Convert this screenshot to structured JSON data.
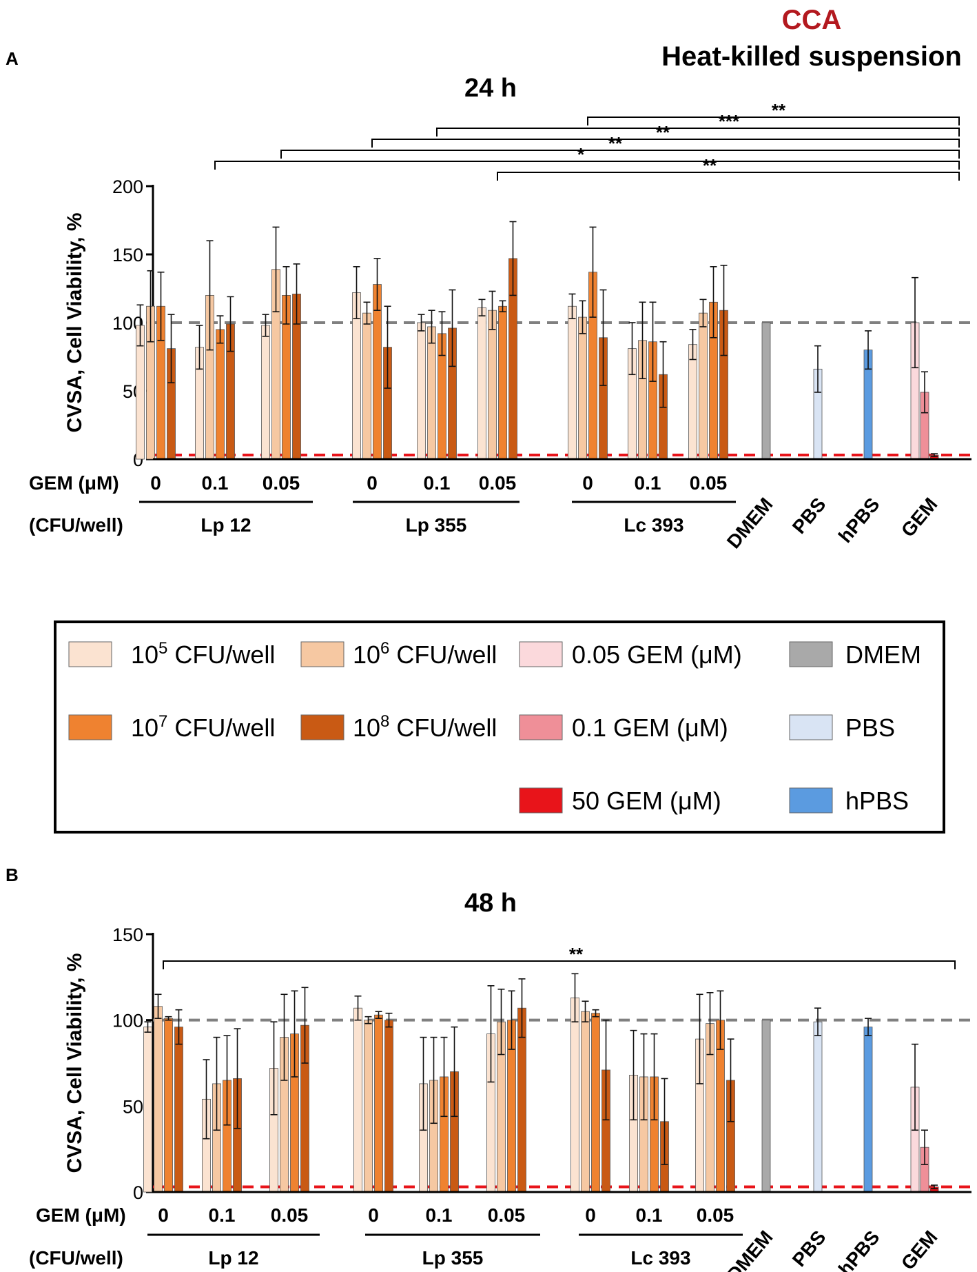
{
  "figure": {
    "cca_label": "CCA",
    "suspension_label": "Heat-killed suspension",
    "colors": {
      "cfu_1e5": "#fbe3d1",
      "cfu_1e6": "#f6c8a2",
      "cfu_1e7": "#ef8230",
      "cfu_1e8": "#c95a14",
      "gem_005": "#fbd9dc",
      "gem_01": "#ef8f98",
      "gem_50": "#e8141a",
      "dmem": "#a9a9a9",
      "pbs": "#d9e4f4",
      "hpbs": "#5b9be0",
      "title_red": "#b3191f"
    }
  },
  "chart_data": [
    {
      "panel": "A",
      "type": "bar",
      "title": "24 h",
      "ylabel": "CVSA, Cell Viability, %",
      "ylim": [
        0,
        200
      ],
      "yticks": [
        0,
        50,
        100,
        150,
        200
      ],
      "reference_lines": [
        {
          "y": 100,
          "color": "#808080",
          "style": "dashed"
        },
        {
          "y": 3,
          "color": "#e8141a",
          "style": "dashed"
        }
      ],
      "gem_axis_label": "GEM (μM)",
      "cfu_axis_label": "(CFU/well)",
      "gem_tick_labels": [
        "0",
        "0.1",
        "0.05",
        "0",
        "0.1",
        "0.05",
        "0",
        "0.1",
        "0.05"
      ],
      "strain_labels": [
        "Lp 12",
        "Lp 355",
        "Lc 393"
      ],
      "control_labels": [
        "DMEM",
        "PBS",
        "hPBS",
        "GEM"
      ],
      "series_names": [
        "10^5 CFU/well",
        "10^6 CFU/well",
        "10^7 CFU/well",
        "10^8 CFU/well"
      ],
      "groups": [
        {
          "strain": "Lp 12",
          "gem": "0",
          "values": [
            98,
            112,
            112,
            81
          ],
          "errors": [
            15,
            26,
            25,
            25
          ]
        },
        {
          "strain": "Lp 12",
          "gem": "0.1",
          "values": [
            82,
            120,
            95,
            99
          ],
          "errors": [
            16,
            40,
            10,
            20
          ]
        },
        {
          "strain": "Lp 12",
          "gem": "0.05",
          "values": [
            98,
            139,
            120,
            121
          ],
          "errors": [
            8,
            31,
            21,
            22
          ]
        },
        {
          "strain": "Lp 355",
          "gem": "0",
          "values": [
            122,
            107,
            128,
            82
          ],
          "errors": [
            19,
            8,
            19,
            30
          ]
        },
        {
          "strain": "Lp 355",
          "gem": "0.1",
          "values": [
            100,
            97,
            92,
            96
          ],
          "errors": [
            6,
            12,
            16,
            28
          ]
        },
        {
          "strain": "Lp 355",
          "gem": "0.05",
          "values": [
            111,
            109,
            112,
            147
          ],
          "errors": [
            6,
            14,
            4,
            27
          ]
        },
        {
          "strain": "Lc 393",
          "gem": "0",
          "values": [
            112,
            104,
            137,
            89
          ],
          "errors": [
            9,
            12,
            33,
            35
          ]
        },
        {
          "strain": "Lc 393",
          "gem": "0.1",
          "values": [
            81,
            87,
            86,
            62
          ],
          "errors": [
            19,
            28,
            29,
            24
          ]
        },
        {
          "strain": "Lc 393",
          "gem": "0.05",
          "values": [
            84,
            107,
            115,
            109
          ],
          "errors": [
            11,
            10,
            26,
            33
          ]
        }
      ],
      "controls": [
        {
          "name": "DMEM",
          "value": 100,
          "error": 0
        },
        {
          "name": "PBS",
          "value": 66,
          "error": 17
        },
        {
          "name": "hPBS",
          "value": 80,
          "error": 14
        },
        {
          "name": "GEM 0.05",
          "value": 100,
          "error": 33
        },
        {
          "name": "GEM 0.1",
          "value": 49,
          "error": 15
        },
        {
          "name": "GEM 50",
          "value": 3,
          "error": 1
        }
      ],
      "significance": [
        {
          "from_group": 6,
          "label": "**"
        },
        {
          "from_group": 4,
          "label": "***"
        },
        {
          "from_group": 3,
          "label": "**"
        },
        {
          "from_group": 2,
          "label": "**"
        },
        {
          "from_group": 1,
          "label": "*"
        },
        {
          "from_group": 5,
          "label": "**"
        }
      ]
    },
    {
      "panel": "B",
      "type": "bar",
      "title": "48 h",
      "ylabel": "CVSA, Cell Viability, %",
      "ylim": [
        0,
        150
      ],
      "yticks": [
        0,
        50,
        100,
        150
      ],
      "reference_lines": [
        {
          "y": 100,
          "color": "#808080",
          "style": "dashed"
        },
        {
          "y": 3,
          "color": "#e8141a",
          "style": "dashed"
        }
      ],
      "gem_axis_label": "GEM (μM)",
      "cfu_axis_label": "(CFU/well)",
      "gem_tick_labels": [
        "0",
        "0.1",
        "0.05",
        "0",
        "0.1",
        "0.05",
        "0",
        "0.1",
        "0.05"
      ],
      "strain_labels": [
        "Lp 12",
        "Lp 355",
        "Lc 393"
      ],
      "control_labels": [
        "DMEM",
        "PBS",
        "hPBS",
        "GEM"
      ],
      "series_names": [
        "10^5 CFU/well",
        "10^6 CFU/well",
        "10^7 CFU/well",
        "10^8 CFU/well"
      ],
      "groups": [
        {
          "strain": "Lp 12",
          "gem": "0",
          "values": [
            96,
            108,
            101,
            96
          ],
          "errors": [
            3,
            7,
            1,
            10
          ]
        },
        {
          "strain": "Lp 12",
          "gem": "0.1",
          "values": [
            54,
            63,
            65,
            66
          ],
          "errors": [
            23,
            27,
            26,
            29
          ]
        },
        {
          "strain": "Lp 12",
          "gem": "0.05",
          "values": [
            72,
            90,
            92,
            97
          ],
          "errors": [
            27,
            25,
            25,
            22
          ]
        },
        {
          "strain": "Lp 355",
          "gem": "0",
          "values": [
            107,
            100,
            103,
            100
          ],
          "errors": [
            7,
            2,
            2,
            4
          ]
        },
        {
          "strain": "Lp 355",
          "gem": "0.1",
          "values": [
            63,
            65,
            67,
            70
          ],
          "errors": [
            27,
            25,
            23,
            26
          ]
        },
        {
          "strain": "Lp 355",
          "gem": "0.05",
          "values": [
            92,
            99,
            100,
            107
          ],
          "errors": [
            28,
            19,
            17,
            17
          ]
        },
        {
          "strain": "Lc 393",
          "gem": "0",
          "values": [
            113,
            105,
            104,
            71
          ],
          "errors": [
            14,
            6,
            2,
            29
          ]
        },
        {
          "strain": "Lc 393",
          "gem": "0.1",
          "values": [
            68,
            67,
            67,
            41
          ],
          "errors": [
            26,
            25,
            25,
            25
          ]
        },
        {
          "strain": "Lc 393",
          "gem": "0.05",
          "values": [
            89,
            98,
            100,
            65
          ],
          "errors": [
            26,
            18,
            17,
            24
          ]
        }
      ],
      "controls": [
        {
          "name": "DMEM",
          "value": 100,
          "error": 0
        },
        {
          "name": "PBS",
          "value": 99,
          "error": 8
        },
        {
          "name": "hPBS",
          "value": 96,
          "error": 5
        },
        {
          "name": "GEM 0.05",
          "value": 61,
          "error": 25
        },
        {
          "name": "GEM 0.1",
          "value": 26,
          "error": 10
        },
        {
          "name": "GEM 50",
          "value": 3,
          "error": 1
        }
      ],
      "significance": [
        {
          "from_group": 0,
          "label": "**"
        }
      ]
    }
  ],
  "legend": {
    "items": [
      {
        "key": "cfu_1e5",
        "base": "10",
        "exp": "5",
        "suffix": " CFU/well"
      },
      {
        "key": "cfu_1e6",
        "base": "10",
        "exp": "6",
        "suffix": " CFU/well"
      },
      {
        "key": "gem_005",
        "text": "0.05 GEM (μM)"
      },
      {
        "key": "dmem",
        "text": "DMEM"
      },
      {
        "key": "cfu_1e7",
        "base": "10",
        "exp": "7",
        "suffix": " CFU/well"
      },
      {
        "key": "cfu_1e8",
        "base": "10",
        "exp": "8",
        "suffix": " CFU/well"
      },
      {
        "key": "gem_01",
        "text": "0.1 GEM (μM)"
      },
      {
        "key": "pbs",
        "text": "PBS"
      },
      {
        "key": "gem_50",
        "text": "50 GEM (μM)"
      },
      {
        "key": "hpbs",
        "text": "hPBS"
      }
    ]
  }
}
